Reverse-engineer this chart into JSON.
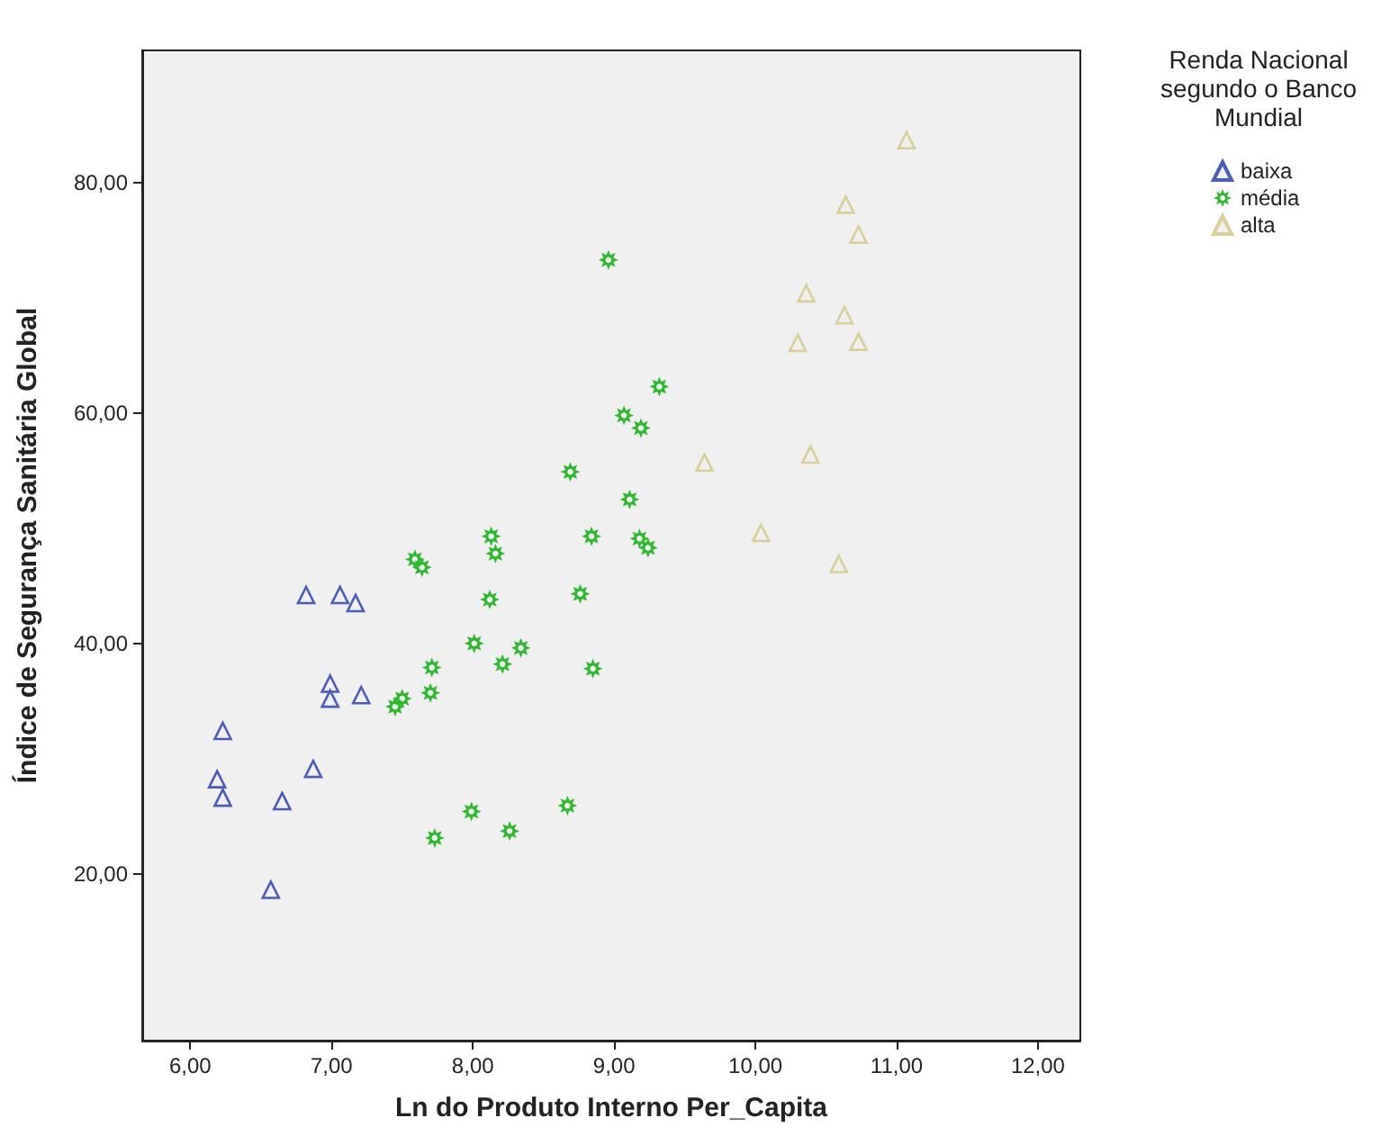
{
  "chart_data": {
    "type": "scatter",
    "xlabel": "Ln do Produto Interno Per_Capita",
    "ylabel": "Índice de Segurança Sanitária Global",
    "legend_title": "Renda Nacional segundo o Banco Mundial",
    "legend": "top right",
    "grid": false,
    "xlim": [
      5.66,
      12.3
    ],
    "ylim": [
      5.5,
      91.5
    ],
    "xticks": [
      {
        "value": 6,
        "label": "6,00"
      },
      {
        "value": 7,
        "label": "7,00"
      },
      {
        "value": 8,
        "label": "8,00"
      },
      {
        "value": 9,
        "label": "9,00"
      },
      {
        "value": 10,
        "label": "10,00"
      },
      {
        "value": 11,
        "label": "11,00"
      },
      {
        "value": 12,
        "label": "12,00"
      }
    ],
    "yticks": [
      {
        "value": 20,
        "label": "20,00"
      },
      {
        "value": 40,
        "label": "40,00"
      },
      {
        "value": 60,
        "label": "60,00"
      },
      {
        "value": 80,
        "label": "80,00"
      }
    ],
    "series": [
      {
        "name": "baixa",
        "color": "#4a5cb8",
        "marker": "triangle",
        "x": [
          6.82,
          7.06,
          7.17,
          6.99,
          6.99,
          7.21,
          6.23,
          6.87,
          6.19,
          6.23,
          6.65,
          6.57
        ],
        "values": [
          44.2,
          44.2,
          43.5,
          36.5,
          35.2,
          35.5,
          32.4,
          29.1,
          28.2,
          26.6,
          26.3,
          18.6
        ]
      },
      {
        "name": "média",
        "color": "#2eb82e",
        "marker": "star",
        "x": [
          8.96,
          9.32,
          9.07,
          9.19,
          8.69,
          9.11,
          8.13,
          8.84,
          9.18,
          9.24,
          8.16,
          7.59,
          7.64,
          8.12,
          8.76,
          8.01,
          8.34,
          8.21,
          7.71,
          8.85,
          7.7,
          7.5,
          7.45,
          8.67,
          7.99,
          8.26,
          7.73
        ],
        "values": [
          73.3,
          62.3,
          59.8,
          58.7,
          54.9,
          52.5,
          49.3,
          49.3,
          49.1,
          48.3,
          47.8,
          47.3,
          46.6,
          43.8,
          44.3,
          40,
          39.6,
          38.2,
          37.9,
          37.8,
          35.7,
          35.2,
          34.5,
          25.9,
          25.4,
          23.7,
          23.1
        ]
      },
      {
        "name": "alta",
        "color": "#d8cf96",
        "marker": "triangle",
        "x": [
          11.07,
          10.64,
          10.73,
          10.36,
          10.63,
          10.3,
          10.73,
          10.39,
          9.64,
          10.04,
          10.59
        ],
        "values": [
          83.7,
          78.1,
          75.5,
          70.4,
          68.5,
          66.1,
          66.2,
          56.4,
          55.7,
          49.6,
          46.9
        ]
      }
    ]
  }
}
